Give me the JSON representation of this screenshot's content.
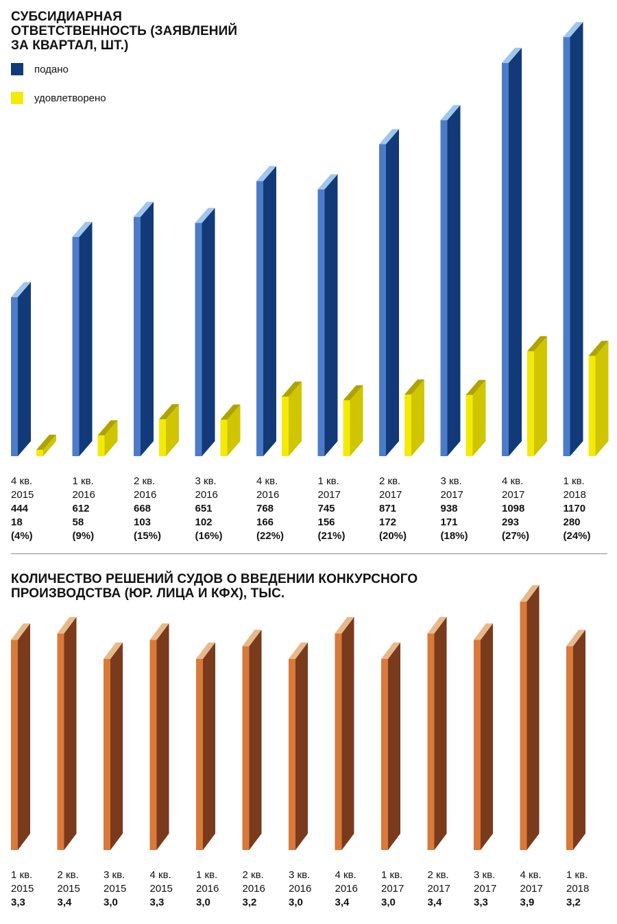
{
  "chart_data": [
    {
      "type": "bar",
      "title_lines": [
        "СУБСИДИАРНАЯ",
        "ОТВЕТСТВЕННОСТЬ (ЗАЯВЛЕНИЙ",
        "ЗА КВАРТАЛ, ШТ.)"
      ],
      "legend_position": "top-left",
      "grid": false,
      "categories": [
        {
          "quarter": "4 кв.",
          "year": "2015"
        },
        {
          "quarter": "1 кв.",
          "year": "2016"
        },
        {
          "quarter": "2 кв.",
          "year": "2016"
        },
        {
          "quarter": "3 кв.",
          "year": "2016"
        },
        {
          "quarter": "4 кв.",
          "year": "2016"
        },
        {
          "quarter": "1 кв.",
          "year": "2017"
        },
        {
          "quarter": "2 кв.",
          "year": "2017"
        },
        {
          "quarter": "3 кв.",
          "year": "2017"
        },
        {
          "quarter": "4 кв.",
          "year": "2017"
        },
        {
          "quarter": "1 кв.",
          "year": "2018"
        }
      ],
      "series": [
        {
          "name": "подано",
          "color_front": "#4c7cc8",
          "color_side": "#123a78",
          "color_top": "#9fc6ee",
          "values": [
            444,
            612,
            668,
            651,
            768,
            745,
            871,
            938,
            1098,
            1170
          ]
        },
        {
          "name": "удовлетворено",
          "color_front": "#f4ea08",
          "color_side": "#cfc600",
          "color_top": "#aea300",
          "values": [
            18,
            58,
            103,
            102,
            166,
            156,
            172,
            171,
            293,
            280
          ]
        }
      ],
      "value_labels": [
        {
          "submitted": "444",
          "satisfied": "18",
          "pct": "(4%)"
        },
        {
          "submitted": "612",
          "satisfied": "58",
          "pct": "(9%)"
        },
        {
          "submitted": "668",
          "satisfied": "103",
          "pct": "(15%)"
        },
        {
          "submitted": "651",
          "satisfied": "102",
          "pct": "(16%)"
        },
        {
          "submitted": "768",
          "satisfied": "166",
          "pct": "(22%)"
        },
        {
          "submitted": "745",
          "satisfied": "156",
          "pct": "(21%)"
        },
        {
          "submitted": "871",
          "satisfied": "172",
          "pct": "(20%)"
        },
        {
          "submitted": "938",
          "satisfied": "171",
          "pct": "(18%)"
        },
        {
          "submitted": "1098",
          "satisfied": "293",
          "pct": "(27%)"
        },
        {
          "submitted": "1170",
          "satisfied": "280",
          "pct": "(24%)"
        }
      ]
    },
    {
      "type": "bar",
      "title_lines": [
        "КОЛИЧЕСТВО РЕШЕНИЙ СУДОВ О ВВЕДЕНИИ КОНКУРСНОГО",
        "ПРОИЗВОДСТВА (ЮР. ЛИЦА И КФХ), ТЫС."
      ],
      "grid": false,
      "categories": [
        {
          "quarter": "1 кв.",
          "year": "2015"
        },
        {
          "quarter": "2 кв.",
          "year": "2015"
        },
        {
          "quarter": "3 кв.",
          "year": "2015"
        },
        {
          "quarter": "4 кв.",
          "year": "2015"
        },
        {
          "quarter": "1 кв.",
          "year": "2016"
        },
        {
          "quarter": "2 кв.",
          "year": "2016"
        },
        {
          "quarter": "3 кв.",
          "year": "2016"
        },
        {
          "quarter": "4 кв.",
          "year": "2016"
        },
        {
          "quarter": "1 кв.",
          "year": "2017"
        },
        {
          "quarter": "2 кв.",
          "year": "2017"
        },
        {
          "quarter": "3 кв.",
          "year": "2017"
        },
        {
          "quarter": "4 кв.",
          "year": "2017"
        },
        {
          "quarter": "1 кв.",
          "year": "2018"
        }
      ],
      "series": [
        {
          "color_front": "#d9793a",
          "color_side": "#7a3a1c",
          "color_top": "#e7b98a",
          "values": [
            3.3,
            3.4,
            3.0,
            3.3,
            3.0,
            3.2,
            3.0,
            3.4,
            3.0,
            3.4,
            3.3,
            3.9,
            3.2
          ]
        }
      ],
      "value_labels": [
        "3,3",
        "3,4",
        "3,0",
        "3,3",
        "3,0",
        "3,2",
        "3,0",
        "3,4",
        "3,0",
        "3,4",
        "3,3",
        "3,9",
        "3,2"
      ]
    }
  ]
}
